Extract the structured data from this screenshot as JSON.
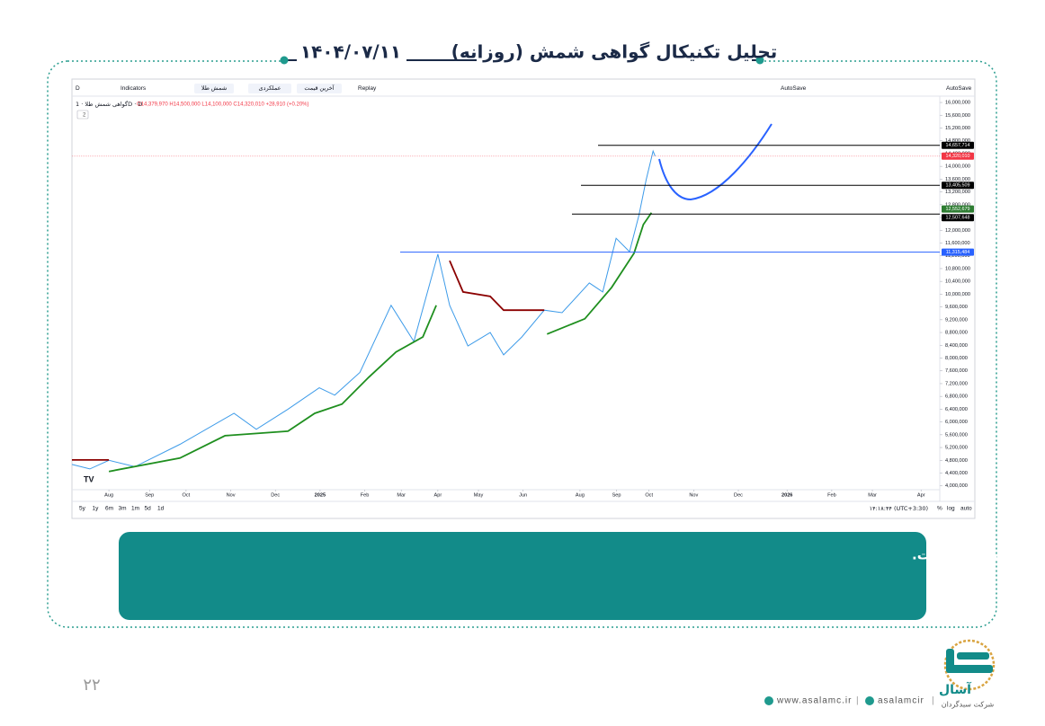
{
  "header": {
    "title": "تحلیل تکنیکال گواهی شمش (روزانه)",
    "date": "۱۴۰۴/۰۷/۱۱"
  },
  "toolbar": {
    "interval": "D",
    "indicators": "Indicators",
    "symbol_button": "شمش طلا",
    "performance": "عملکردی",
    "last_price": "آخرین قیمت",
    "replay": "Replay",
    "autosave_left": "AutoSave",
    "autosave_right": "AutoSave"
  },
  "legend": {
    "symbol": "گواهی شمش طلا · 1D · D",
    "ohlc": "O14,379,970 H14,500,000 L14,100,000 C14,320,010 +28,910 (+0.20%)",
    "indicator_count": "2"
  },
  "chart_data": {
    "type": "line",
    "series": [
      {
        "color": "#3d9be9",
        "x": [
          -0.91,
          -0.47,
          0,
          0.64,
          1.75,
          3.08,
          3.63,
          4.41,
          5.18,
          5.56,
          6.18,
          6.95,
          7.51,
          8.1,
          8.39,
          8.84,
          9.39,
          9.72,
          10.17,
          10.72,
          11.16,
          11.83,
          12.16,
          12.49,
          12.82,
          13.05,
          13.23,
          13.4,
          13.45
        ],
        "values": [
          4670000,
          4530000,
          4800000,
          4600000,
          5300000,
          6270000,
          5770000,
          6400000,
          7070000,
          6840000,
          7550000,
          9650000,
          8520000,
          11250000,
          9650000,
          8380000,
          8800000,
          8100000,
          8660000,
          9500000,
          9420000,
          10350000,
          10070000,
          11750000,
          11330000,
          12460000,
          13580000,
          14480000,
          14320010
        ]
      },
      {
        "color": "#1f8f1f",
        "x": [
          0,
          1.75,
          2.86,
          4.41,
          5.07,
          5.74,
          6.4,
          7.07,
          7.73,
          8.06,
          9.4,
          10.79,
          11.72,
          12.38,
          12.93,
          13.16,
          13.36
        ],
        "values": [
          4450000,
          4870000,
          5570000,
          5710000,
          6270000,
          6560000,
          7400000,
          8190000,
          8660000,
          9650000,
          null,
          8750000,
          9230000,
          10210000,
          11280000,
          12180000,
          12550000
        ]
      },
      {
        "color": "#8b0000",
        "x": [
          -0.91,
          0,
          4,
          8.39,
          8.72,
          9.39,
          9.72,
          10.72
        ],
        "values": [
          4810000,
          4810000,
          null,
          11050000,
          10070000,
          9930000,
          9500000,
          9500000
        ]
      }
    ],
    "xlim": [
      -0.91,
      20.46
    ],
    "xticks": [
      {
        "value": 0,
        "label": "Aug"
      },
      {
        "value": 1,
        "label": "Sep"
      },
      {
        "value": 1.9,
        "label": "Oct"
      },
      {
        "value": 3,
        "label": "Nov"
      },
      {
        "value": 4.1,
        "label": "Dec"
      },
      {
        "value": 5.2,
        "label": "2025"
      },
      {
        "value": 6.3,
        "label": "Feb"
      },
      {
        "value": 7.2,
        "label": "Mar"
      },
      {
        "value": 8.1,
        "label": "Apr"
      },
      {
        "value": 9.1,
        "label": "May"
      },
      {
        "value": 10.2,
        "label": "Jun"
      },
      {
        "value": 11.6,
        "label": "Aug"
      },
      {
        "value": 12.5,
        "label": "Sep"
      },
      {
        "value": 13.3,
        "label": "Oct"
      },
      {
        "value": 14.4,
        "label": "Nov"
      },
      {
        "value": 15.5,
        "label": "Dec"
      },
      {
        "value": 16.7,
        "label": "2026"
      },
      {
        "value": 17.8,
        "label": "Feb"
      },
      {
        "value": 18.8,
        "label": "Mar"
      },
      {
        "value": 20,
        "label": "Apr"
      }
    ],
    "ylim": [
      3880000,
      16170000
    ],
    "yticks": [
      {
        "value": 4000000,
        "label": "4,000,000"
      },
      {
        "value": 4400000,
        "label": "4,400,000"
      },
      {
        "value": 4800000,
        "label": "4,800,000"
      },
      {
        "value": 5200000,
        "label": "5,200,000"
      },
      {
        "value": 5600000,
        "label": "5,600,000"
      },
      {
        "value": 6000000,
        "label": "6,000,000"
      },
      {
        "value": 6400000,
        "label": "6,400,000"
      },
      {
        "value": 6800000,
        "label": "6,800,000"
      },
      {
        "value": 7200000,
        "label": "7,200,000"
      },
      {
        "value": 7600000,
        "label": "7,600,000"
      },
      {
        "value": 8000000,
        "label": "8,000,000"
      },
      {
        "value": 8400000,
        "label": "8,400,000"
      },
      {
        "value": 8800000,
        "label": "8,800,000"
      },
      {
        "value": 9200000,
        "label": "9,200,000"
      },
      {
        "value": 9600000,
        "label": "9,600,000"
      },
      {
        "value": 10000000,
        "label": "10,000,000"
      },
      {
        "value": 10400000,
        "label": "10,400,000"
      },
      {
        "value": 10800000,
        "label": "10,800,000"
      },
      {
        "value": 11200000,
        "label": "11,200,000"
      },
      {
        "value": 11600000,
        "label": "11,600,000"
      },
      {
        "value": 12000000,
        "label": "12,000,000"
      },
      {
        "value": 12400000,
        "label": "12,400,000"
      },
      {
        "value": 12800000,
        "label": "12,800,000"
      },
      {
        "value": 13200000,
        "label": "13,200,000"
      },
      {
        "value": 13600000,
        "label": "13,600,000"
      },
      {
        "value": 14000000,
        "label": "14,000,000"
      },
      {
        "value": 14400000,
        "label": "14,400,000"
      },
      {
        "value": 14800000,
        "label": "14,800,000"
      },
      {
        "value": 15200000,
        "label": "15,200,000"
      },
      {
        "value": 15600000,
        "label": "15,600,000"
      },
      {
        "value": 16000000,
        "label": "16,000,000"
      }
    ],
    "grid": false,
    "levels": {
      "values": [
        14657714,
        14320010,
        13405509,
        12552679,
        12507648,
        11315484
      ],
      "value_labels": [
        "14,657,714",
        "14,320,010",
        "13,405,509",
        "12,552,679",
        "12,507,648",
        "11,315,484"
      ],
      "colors": [
        "#000000",
        "#f23645",
        "#000000",
        "#2e7d32",
        "#000000",
        "#2962ff"
      ]
    }
  },
  "timeframes": [
    "5y",
    "1y",
    "6m",
    "3m",
    "1m",
    "5d",
    "1d"
  ],
  "status": {
    "time": "۱۴:۱۸:۴۴ (UTC+3:30)",
    "percent": "%",
    "log": "log",
    "auto": "auto"
  },
  "note": "با توجه به رسیدن به اهداف تعیین شده ، مسیر احتمالی آینده ترسیم شده است.",
  "page_number": "۲۲",
  "footer": {
    "website": "www.asalamc.ir",
    "telegram": "asalamcir",
    "separator": "|"
  },
  "logo": {
    "name": "آسال",
    "subtitle": "شرکت سبدگردان"
  }
}
